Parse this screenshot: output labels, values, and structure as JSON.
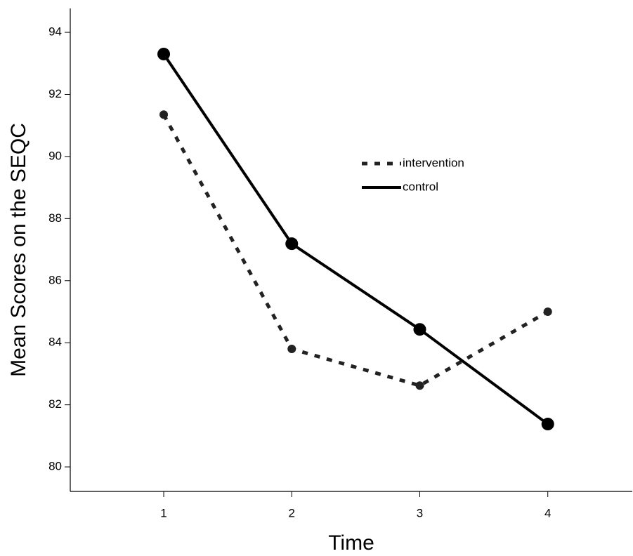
{
  "chart_data": {
    "type": "line",
    "x_label": "Time",
    "y_label": "Mean Scores on the SEQC",
    "x": [
      1,
      2,
      3,
      4
    ],
    "series": [
      {
        "name": "intervention",
        "color": "#222222",
        "dash": "dotted",
        "values": [
          91.35,
          83.8,
          82.62,
          85.0
        ]
      },
      {
        "name": "control",
        "color": "#000000",
        "dash": "solid",
        "values": [
          93.3,
          87.19,
          84.43,
          81.38
        ]
      }
    ],
    "xlim": [
      0.27,
      4.66
    ],
    "xticks": [
      1,
      2,
      3,
      4
    ],
    "ylim": [
      79.21,
      94.77
    ],
    "yticks": [
      80,
      82,
      84,
      86,
      88,
      90,
      92,
      94
    ],
    "grid": false,
    "legend_position": "center"
  }
}
